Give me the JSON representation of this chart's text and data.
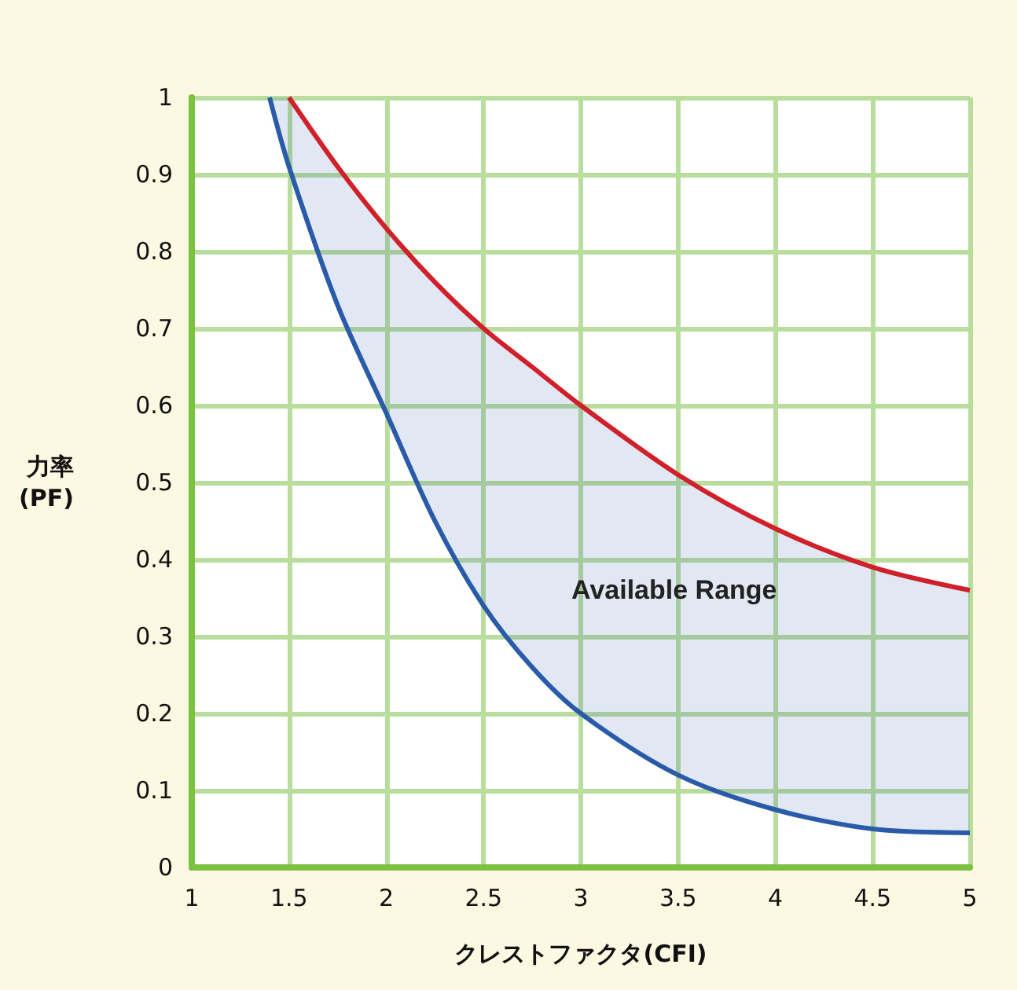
{
  "chart_data": {
    "type": "line",
    "xlabel": "クレストファクタ(CFI)",
    "ylabel": "力率\n(PF)",
    "annotations": [
      "Available Range"
    ],
    "series": [
      {
        "color": "#d0202a",
        "x": [
          1.5,
          1.75,
          2,
          2.25,
          2.5,
          2.75,
          3,
          3.5,
          4,
          4.5,
          5
        ],
        "values": [
          1,
          0.91,
          0.83,
          0.76,
          0.7,
          0.65,
          0.6,
          0.51,
          0.44,
          0.39,
          0.36
        ]
      },
      {
        "color": "#2a5ba8",
        "x": [
          1.4,
          1.5,
          1.75,
          2,
          2.25,
          2.5,
          2.75,
          3,
          3.5,
          4,
          4.5,
          5
        ],
        "values": [
          1,
          0.91,
          0.73,
          0.59,
          0.45,
          0.34,
          0.26,
          0.2,
          0.12,
          0.075,
          0.05,
          0.045
        ],
        "upper": [
          1,
          1,
          0.91,
          0.83,
          0.76,
          0.7,
          0.65,
          0.6,
          0.51,
          0.44,
          0.39,
          0.36
        ],
        "lower": [
          1,
          0.91,
          0.73,
          0.59,
          0.45,
          0.34,
          0.26,
          0.2,
          0.12,
          0.075,
          0.05,
          0.045
        ]
      }
    ],
    "xlim": [
      1,
      5
    ],
    "xticks": [
      1,
      1.5,
      2,
      2.5,
      3,
      3.5,
      4,
      4.5,
      5
    ],
    "ylim": [
      0,
      1
    ],
    "yticks": [
      0,
      0.1,
      0.2,
      0.3,
      0.4,
      0.5,
      0.6,
      0.7,
      0.8,
      0.9,
      1
    ],
    "grid": true
  }
}
